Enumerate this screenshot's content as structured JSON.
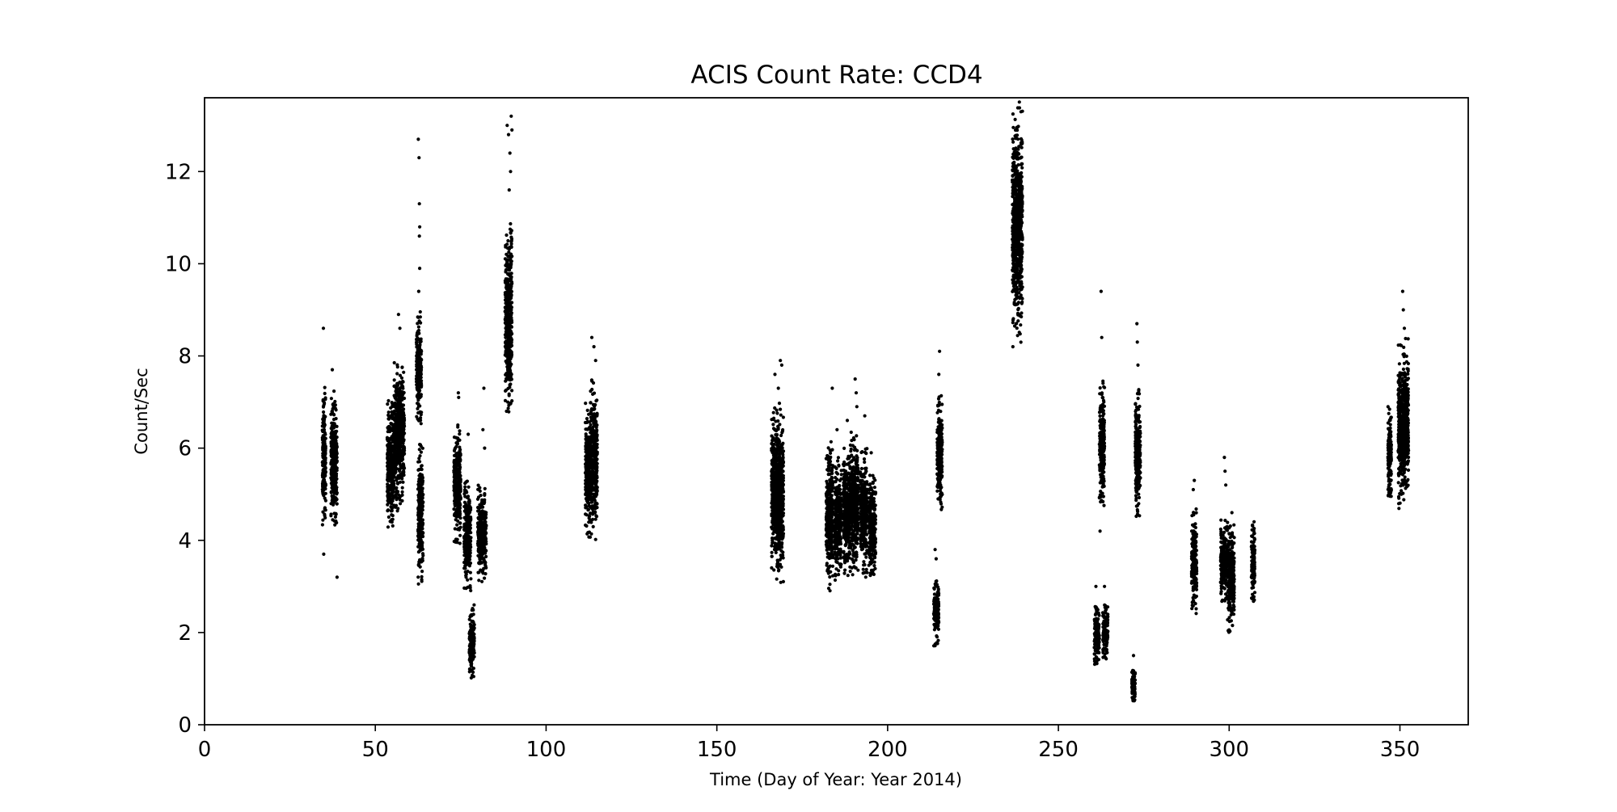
{
  "chart_data": {
    "type": "scatter",
    "title": "ACIS Count Rate: CCD4",
    "xlabel": "Time (Day of Year: Year 2014)",
    "ylabel": "Count/Sec",
    "xlim": [
      0,
      370
    ],
    "ylim": [
      0,
      13.6
    ],
    "xticks": [
      0,
      50,
      100,
      150,
      200,
      250,
      300,
      350
    ],
    "yticks": [
      0,
      2,
      4,
      6,
      8,
      10,
      12
    ],
    "grid": false,
    "marker_color": "#000000",
    "clusters": [
      {
        "x": [
          34.5,
          35.5
        ],
        "y": [
          4.3,
          7.4
        ],
        "outliers": [
          [
            34.8,
            8.6
          ],
          [
            34.9,
            3.7
          ]
        ]
      },
      {
        "x": [
          37.0,
          38.8
        ],
        "y": [
          4.2,
          7.3
        ],
        "outliers": [
          [
            37.4,
            7.7
          ],
          [
            38.8,
            3.2
          ]
        ]
      },
      {
        "x": [
          53.5,
          55.5
        ],
        "y": [
          4.1,
          7.1
        ],
        "outliers": []
      },
      {
        "x": [
          55.5,
          58.5
        ],
        "y": [
          4.6,
          8.0
        ],
        "outliers": [
          [
            56.8,
            8.9
          ],
          [
            57.2,
            8.6
          ]
        ]
      },
      {
        "x": [
          62.0,
          63.5
        ],
        "y": [
          6.5,
          9.0
        ],
        "outliers": [
          [
            62.6,
            12.7
          ],
          [
            62.8,
            12.3
          ],
          [
            62.9,
            11.3
          ],
          [
            63.0,
            10.8
          ],
          [
            62.9,
            10.6
          ],
          [
            63.0,
            9.9
          ],
          [
            62.7,
            9.4
          ],
          [
            62.9,
            7.8
          ],
          [
            63.0,
            7.4
          ]
        ]
      },
      {
        "x": [
          62.5,
          64.0
        ],
        "y": [
          3.0,
          6.1
        ],
        "outliers": []
      },
      {
        "x": [
          73.0,
          75.0
        ],
        "y": [
          3.9,
          6.6
        ],
        "outliers": [
          [
            74.3,
            7.2
          ],
          [
            74.4,
            7.1
          ]
        ]
      },
      {
        "x": [
          76.0,
          78.0
        ],
        "y": [
          2.9,
          5.3
        ],
        "outliers": [
          [
            77.2,
            6.3
          ]
        ]
      },
      {
        "x": [
          77.5,
          79.0
        ],
        "y": [
          1.0,
          2.6
        ],
        "outliers": []
      },
      {
        "x": [
          80.0,
          82.5
        ],
        "y": [
          3.1,
          5.2
        ],
        "outliers": [
          [
            81.5,
            6.4
          ],
          [
            82.0,
            6.0
          ],
          [
            81.8,
            7.3
          ]
        ]
      },
      {
        "x": [
          88.0,
          90.0
        ],
        "y": [
          6.6,
          11.0
        ],
        "outliers": [
          [
            88.6,
            13.0
          ],
          [
            89.0,
            12.8
          ],
          [
            89.4,
            12.4
          ],
          [
            89.8,
            13.2
          ],
          [
            90.0,
            12.9
          ],
          [
            89.6,
            12.0
          ],
          [
            89.2,
            11.6
          ]
        ]
      },
      {
        "x": [
          111.5,
          113.0
        ],
        "y": [
          4.0,
          7.0
        ],
        "outliers": []
      },
      {
        "x": [
          113.0,
          115.0
        ],
        "y": [
          4.0,
          7.5
        ],
        "outliers": [
          [
            113.4,
            8.4
          ],
          [
            114.0,
            8.2
          ],
          [
            114.5,
            7.9
          ]
        ]
      },
      {
        "x": [
          166.0,
          168.0
        ],
        "y": [
          3.3,
          6.9
        ],
        "outliers": [
          [
            167.0,
            7.6
          ],
          [
            168.0,
            7.3
          ]
        ]
      },
      {
        "x": [
          167.5,
          169.5
        ],
        "y": [
          3.0,
          7.0
        ],
        "outliers": [
          [
            168.6,
            7.9
          ],
          [
            169.0,
            7.8
          ]
        ]
      },
      {
        "x": [
          182.0,
          184.0
        ],
        "y": [
          2.9,
          6.2
        ],
        "outliers": [
          [
            183.8,
            7.3
          ]
        ]
      },
      {
        "x": [
          184.5,
          186.5
        ],
        "y": [
          3.1,
          5.8
        ],
        "outliers": [
          [
            185.2,
            6.4
          ]
        ]
      },
      {
        "x": [
          187.0,
          189.0
        ],
        "y": [
          3.2,
          6.0
        ],
        "outliers": [
          [
            188.2,
            6.6
          ]
        ]
      },
      {
        "x": [
          189.0,
          191.5
        ],
        "y": [
          3.2,
          6.4
        ],
        "outliers": [
          [
            190.5,
            7.5
          ],
          [
            190.8,
            7.2
          ],
          [
            191.0,
            6.9
          ]
        ]
      },
      {
        "x": [
          192.0,
          194.0
        ],
        "y": [
          3.2,
          6.0
        ],
        "outliers": [
          [
            193.3,
            6.7
          ]
        ]
      },
      {
        "x": [
          194.5,
          196.5
        ],
        "y": [
          3.1,
          5.5
        ],
        "outliers": [
          [
            195.2,
            5.9
          ]
        ]
      },
      {
        "x": [
          213.5,
          215.0
        ],
        "y": [
          1.7,
          3.2
        ],
        "outliers": [
          [
            213.9,
            3.8
          ],
          [
            214.2,
            3.6
          ]
        ]
      },
      {
        "x": [
          214.5,
          216.0
        ],
        "y": [
          4.6,
          7.2
        ],
        "outliers": [
          [
            215.2,
            8.1
          ],
          [
            215.0,
            7.6
          ]
        ]
      },
      {
        "x": [
          236.5,
          239.5
        ],
        "y": [
          8.1,
          13.6
        ],
        "outliers": []
      },
      {
        "x": [
          260.5,
          262.0
        ],
        "y": [
          1.3,
          2.6
        ],
        "outliers": [
          [
            261.0,
            3.0
          ]
        ]
      },
      {
        "x": [
          262.0,
          263.5
        ],
        "y": [
          4.6,
          7.5
        ],
        "outliers": [
          [
            262.5,
            9.4
          ],
          [
            262.7,
            8.4
          ],
          [
            262.2,
            4.2
          ]
        ]
      },
      {
        "x": [
          263.0,
          264.5
        ],
        "y": [
          1.4,
          2.6
        ],
        "outliers": [
          [
            263.5,
            3.0
          ]
        ]
      },
      {
        "x": [
          271.5,
          272.5
        ],
        "y": [
          0.5,
          1.2
        ],
        "outliers": [
          [
            272.0,
            1.5
          ]
        ]
      },
      {
        "x": [
          272.5,
          274.0
        ],
        "y": [
          4.5,
          7.3
        ],
        "outliers": [
          [
            273.0,
            8.7
          ],
          [
            273.1,
            8.3
          ],
          [
            273.3,
            7.8
          ]
        ]
      },
      {
        "x": [
          289.0,
          290.5
        ],
        "y": [
          2.4,
          4.7
        ],
        "outliers": [
          [
            289.8,
            5.3
          ],
          [
            289.5,
            5.1
          ]
        ]
      },
      {
        "x": [
          297.5,
          299.5
        ],
        "y": [
          2.6,
          4.5
        ],
        "outliers": [
          [
            298.6,
            5.8
          ],
          [
            298.8,
            5.5
          ],
          [
            299.0,
            5.2
          ]
        ]
      },
      {
        "x": [
          299.5,
          301.5
        ],
        "y": [
          2.0,
          4.4
        ],
        "outliers": [
          [
            300.8,
            4.6
          ]
        ]
      },
      {
        "x": [
          306.5,
          307.5
        ],
        "y": [
          2.6,
          4.5
        ],
        "outliers": []
      },
      {
        "x": [
          346.5,
          347.5
        ],
        "y": [
          4.8,
          6.9
        ],
        "outliers": []
      },
      {
        "x": [
          349.5,
          352.5
        ],
        "y": [
          4.6,
          8.4
        ],
        "outliers": [
          [
            350.8,
            9.4
          ],
          [
            351.0,
            9.0
          ],
          [
            351.3,
            8.6
          ]
        ]
      }
    ]
  }
}
